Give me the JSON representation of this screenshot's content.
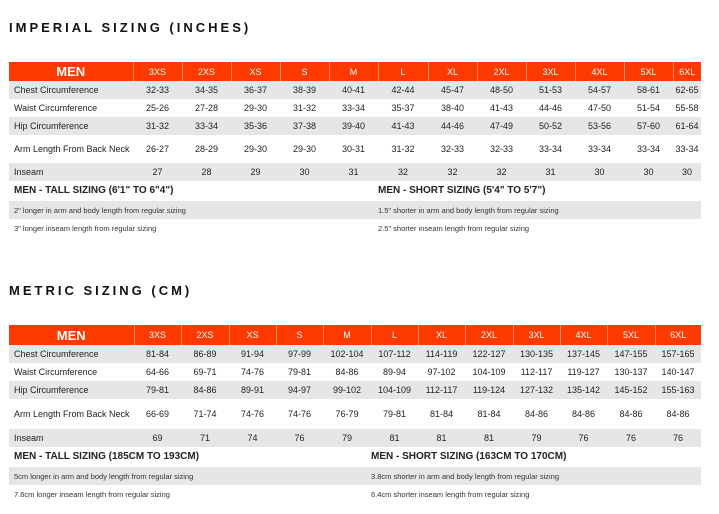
{
  "imperial": {
    "title": "IMPERIAL SIZING (INCHES)",
    "header": "MEN",
    "sizes": [
      "3XS",
      "2XS",
      "XS",
      "S",
      "M",
      "L",
      "XL",
      "2XL",
      "3XL",
      "4XL",
      "5XL",
      "6XL"
    ],
    "rows": [
      {
        "label": "Chest Circumference",
        "values": [
          "32-33",
          "34-35",
          "36-37",
          "38-39",
          "40-41",
          "42-44",
          "45-47",
          "48-50",
          "51-53",
          "54-57",
          "58-61",
          "62-65"
        ]
      },
      {
        "label": "Waist Circumference",
        "values": [
          "25-26",
          "27-28",
          "29-30",
          "31-32",
          "33-34",
          "35-37",
          "38-40",
          "41-43",
          "44-46",
          "47-50",
          "51-54",
          "55-58"
        ]
      },
      {
        "label": "Hip Circumference",
        "values": [
          "31-32",
          "33-34",
          "35-36",
          "37-38",
          "39-40",
          "41-43",
          "44-46",
          "47-49",
          "50-52",
          "53-56",
          "57-60",
          "61-64"
        ]
      },
      {
        "label": "Arm Length From Back Neck",
        "values": [
          "26-27",
          "28-29",
          "29-30",
          "29-30",
          "30-31",
          "31-32",
          "32-33",
          "32-33",
          "33-34",
          "33-34",
          "33-34",
          "33-34"
        ]
      },
      {
        "label": "Inseam",
        "values": [
          "27",
          "28",
          "29",
          "30",
          "31",
          "32",
          "32",
          "32",
          "31",
          "30",
          "30",
          "30"
        ]
      }
    ],
    "tall": {
      "heading": "MEN - TALL SIZING (6'1\" TO 6\"4\")",
      "notes": [
        "2\" longer in arm and body length from regular sizing",
        "3\" longer inseam length from regular sizing"
      ]
    },
    "short": {
      "heading": "MEN - SHORT SIZING  (5'4\" TO 5'7\")",
      "notes": [
        "1.5\" shorter in arm and body length from regular sizing",
        "2.5\" shorter inseam length from regular sizing"
      ]
    }
  },
  "metric": {
    "title": "METRIC SIZING (CM)",
    "header": "MEN",
    "sizes": [
      "3XS",
      "2XS",
      "XS",
      "S",
      "M",
      "L",
      "XL",
      "2XL",
      "3XL",
      "4XL",
      "5XL",
      "6XL"
    ],
    "rows": [
      {
        "label": "Chest Circumference",
        "values": [
          "81-84",
          "86-89",
          "91-94",
          "97-99",
          "102-104",
          "107-112",
          "114-119",
          "122-127",
          "130-135",
          "137-145",
          "147-155",
          "157-165"
        ]
      },
      {
        "label": "Waist Circumference",
        "values": [
          "64-66",
          "69-71",
          "74-76",
          "79-81",
          "84-86",
          "89-94",
          "97-102",
          "104-109",
          "112-117",
          "119-127",
          "130-137",
          "140-147"
        ]
      },
      {
        "label": "Hip Circumference",
        "values": [
          "79-81",
          "84-86",
          "89-91",
          "94-97",
          "99-102",
          "104-109",
          "112-117",
          "119-124",
          "127-132",
          "135-142",
          "145-152",
          "155-163"
        ]
      },
      {
        "label": "Arm Length From Back Neck",
        "values": [
          "66-69",
          "71-74",
          "74-76",
          "74-76",
          "76-79",
          "79-81",
          "81-84",
          "81-84",
          "84-86",
          "84-86",
          "84-86",
          "84-86"
        ]
      },
      {
        "label": "Inseam",
        "values": [
          "69",
          "71",
          "74",
          "76",
          "79",
          "81",
          "81",
          "81",
          "79",
          "76",
          "76",
          "76"
        ]
      }
    ],
    "tall": {
      "heading": "MEN - TALL SIZING (185CM TO 193CM)",
      "notes": [
        "5cm longer in arm and body length from regular sizing",
        "7.6cm longer inseam length from regular sizing"
      ]
    },
    "short": {
      "heading": "MEN - SHORT SIZING  (163CM TO 170CM)",
      "notes": [
        "3.8cm shorter in arm and body length from regular sizing",
        "6.4cm shorter inseam length from regular sizing"
      ]
    }
  },
  "colors": {
    "header_bg": "#fe3a00",
    "stripe": "#e6e6e6"
  }
}
